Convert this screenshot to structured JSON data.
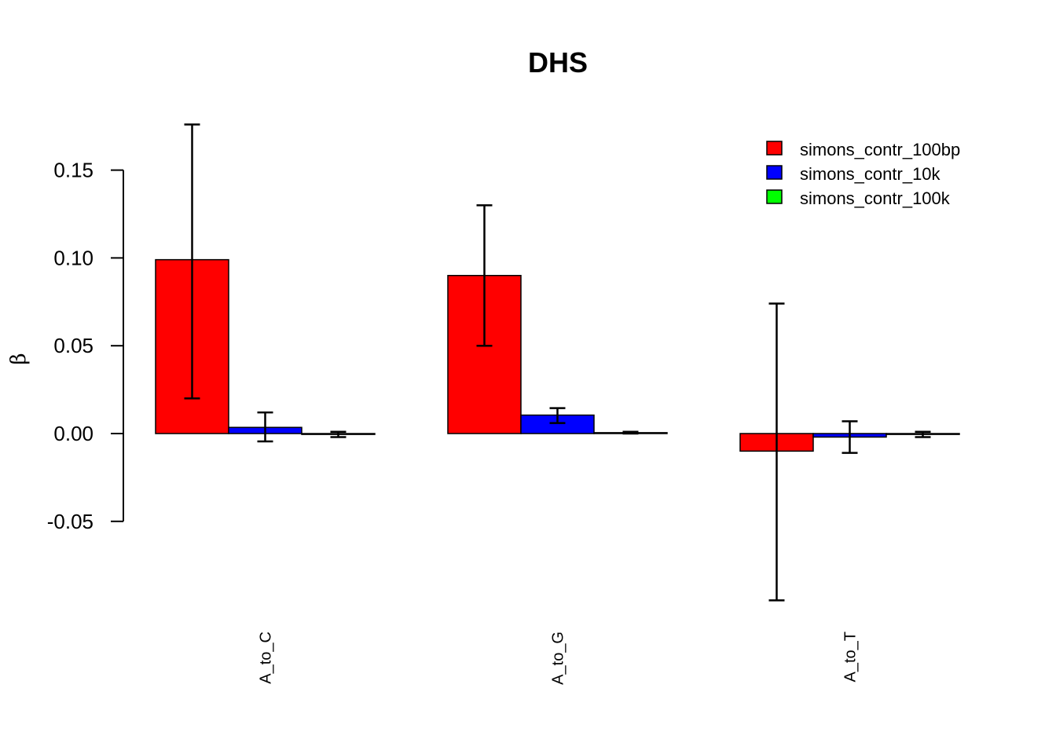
{
  "chart_data": {
    "type": "bar",
    "title": "DHS",
    "ylabel": "β",
    "xlabel": "",
    "categories": [
      "A_to_C",
      "A_to_G",
      "A_to_T"
    ],
    "series": [
      {
        "name": "simons_contr_100bp",
        "color": "#ff0000",
        "values": [
          0.099,
          0.09,
          -0.01
        ],
        "error_low": [
          0.02,
          0.05,
          -0.095
        ],
        "error_high": [
          0.176,
          0.13,
          0.074
        ]
      },
      {
        "name": "simons_contr_10k",
        "color": "#0000ff",
        "values": [
          0.0035,
          0.0105,
          -0.002
        ],
        "error_low": [
          -0.0045,
          0.006,
          -0.011
        ],
        "error_high": [
          0.012,
          0.0145,
          0.007
        ]
      },
      {
        "name": "simons_contr_100k",
        "color": "#00ff00",
        "values": [
          -0.0005,
          0.0005,
          -0.0005
        ],
        "error_low": [
          -0.002,
          0.0,
          -0.002
        ],
        "error_high": [
          0.001,
          0.001,
          0.001
        ]
      }
    ],
    "yticks": [
      "-0.05",
      "0.00",
      "0.05",
      "0.10",
      "0.15"
    ],
    "ytick_values": [
      -0.05,
      0.0,
      0.05,
      0.1,
      0.15
    ],
    "ylim": [
      -0.095,
      0.176
    ],
    "legend_position": "top-right",
    "grid": false
  }
}
